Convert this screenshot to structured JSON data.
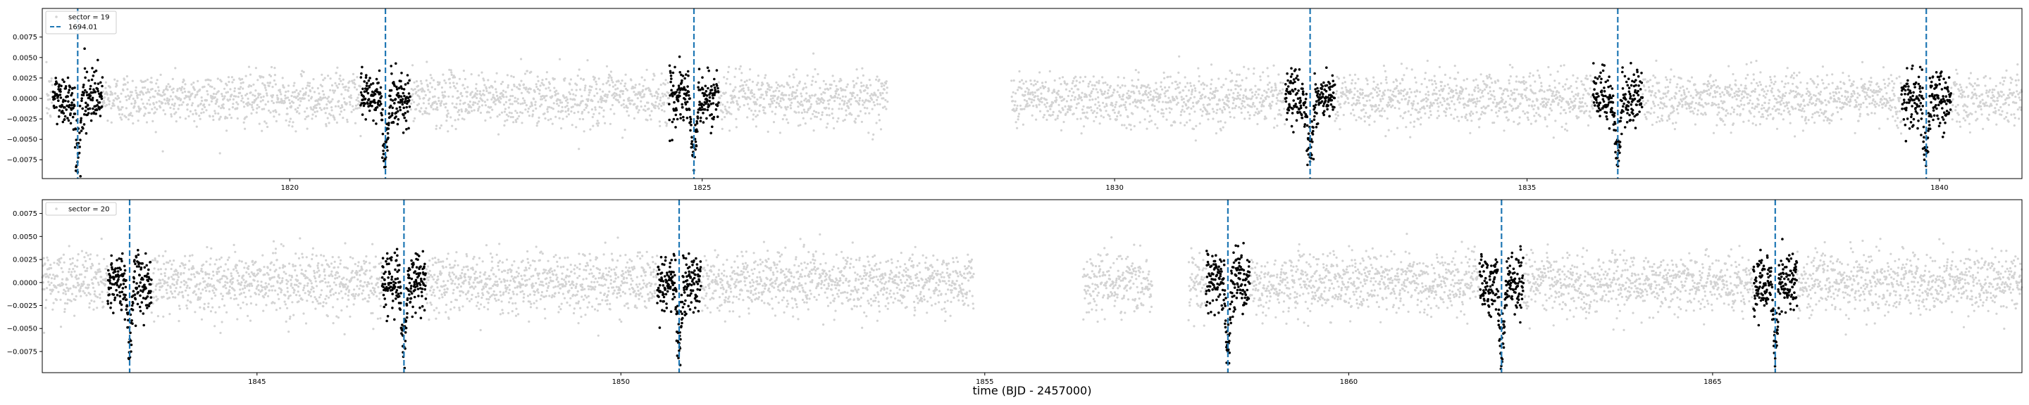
{
  "figure": {
    "xlabel": "time (BJD - 2457000)"
  },
  "chart_data": [
    {
      "type": "scatter",
      "panel": "top",
      "xlim": [
        1817.0,
        1841.0
      ],
      "ylim": [
        -0.0098,
        0.011
      ],
      "xticks": [
        1820,
        1825,
        1830,
        1835,
        1840
      ],
      "yticks": [
        -0.0075,
        -0.005,
        -0.0025,
        0.0,
        0.0025,
        0.005,
        0.0075
      ],
      "xtick_labels": [
        "1820",
        "1825",
        "1830",
        "1835",
        "1840"
      ],
      "ytick_labels": [
        "−0.0075",
        "−0.0050",
        "−0.0025",
        "0.0000",
        "0.0025",
        "0.0050",
        "0.0075"
      ],
      "legend": {
        "position": "top-left",
        "entries": [
          {
            "label": "sector = 19",
            "kind": "points",
            "color": "#d3d3d3"
          },
          {
            "label": "1694.01",
            "kind": "dashed-line",
            "color": "#1f77b4"
          }
        ]
      },
      "background_series": {
        "name": "sector = 19",
        "color": "#d3d3d3",
        "segments": [
          [
            1817.05,
            1827.25
          ],
          [
            1828.75,
            1841.0
          ]
        ],
        "noise": 0.0016
      },
      "transit_times": [
        1817.43,
        1821.16,
        1824.9,
        1832.37,
        1836.1,
        1839.84
      ],
      "transit_window": 0.3,
      "transit_depth": 0.0065,
      "in_transit_color": "#000000",
      "transit_line_color": "#1f77b4"
    },
    {
      "type": "scatter",
      "panel": "bottom",
      "xlim": [
        1842.05,
        1869.25
      ],
      "ylim": [
        -0.0098,
        0.009
      ],
      "xticks": [
        1845,
        1850,
        1855,
        1860,
        1865
      ],
      "yticks": [
        -0.0075,
        -0.005,
        -0.0025,
        0.0,
        0.0025,
        0.005,
        0.0075
      ],
      "xtick_labels": [
        "1845",
        "1850",
        "1855",
        "1860",
        "1865"
      ],
      "ytick_labels": [
        "−0.0075",
        "−0.0050",
        "−0.0025",
        "0.0000",
        "0.0025",
        "0.0050",
        "0.0075"
      ],
      "legend": {
        "position": "top-left",
        "entries": [
          {
            "label": "sector = 20",
            "kind": "points",
            "color": "#d3d3d3"
          }
        ]
      },
      "background_series": {
        "name": "sector = 20",
        "color": "#d3d3d3",
        "segments": [
          [
            1842.05,
            1854.85
          ],
          [
            1856.35,
            1857.3
          ],
          [
            1857.8,
            1869.25
          ]
        ],
        "noise": 0.0016
      },
      "transit_times": [
        1843.25,
        1847.02,
        1850.8,
        1858.34,
        1862.1,
        1865.86
      ],
      "transit_window": 0.3,
      "transit_depth": 0.0065,
      "in_transit_color": "#000000",
      "transit_line_color": "#1f77b4"
    }
  ]
}
